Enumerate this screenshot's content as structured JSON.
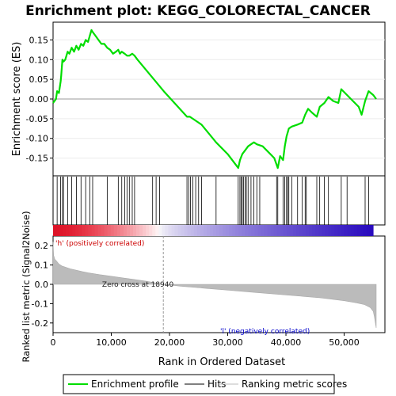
{
  "chart_data": {
    "type": "line",
    "title": "Enrichment plot: KEGG_COLORECTAL_CANCER",
    "xlabel": "Rank in Ordered Dataset",
    "xlim": [
      0,
      57000
    ],
    "x_ticks": [
      0,
      10000,
      20000,
      30000,
      40000,
      50000
    ],
    "x_tick_labels": [
      "0",
      "10,000",
      "20,000",
      "30,000",
      "40,000",
      "50,000"
    ],
    "top_panel": {
      "ylabel": "Enrichment score (ES)",
      "ylim": [
        -0.195,
        0.195
      ],
      "y_ticks": [
        -0.15,
        -0.1,
        -0.05,
        0.0,
        0.05,
        0.1,
        0.15
      ],
      "y_tick_labels": [
        "-0.15",
        "-0.10",
        "-0.05",
        "0.00",
        "0.05",
        "0.10",
        "0.15"
      ],
      "series": [
        {
          "name": "Enrichment profile",
          "color": "#00dd00",
          "x": [
            0,
            500,
            700,
            1000,
            1300,
            1400,
            1600,
            1800,
            2100,
            2500,
            2800,
            3200,
            3600,
            4000,
            4400,
            4800,
            5200,
            5600,
            6000,
            6300,
            6600,
            6800,
            7300,
            7800,
            8300,
            8800,
            9300,
            9800,
            10300,
            10800,
            11200,
            11500,
            11800,
            12300,
            12700,
            13100,
            13600,
            14000,
            14500,
            19000,
            23000,
            23500,
            24000,
            24500,
            25500,
            28000,
            30000,
            31800,
            32100,
            32500,
            33000,
            33500,
            34000,
            34500,
            35000,
            36000,
            37000,
            38000,
            38600,
            39000,
            39500,
            39800,
            40100,
            40500,
            41000,
            42000,
            42800,
            43300,
            43800,
            44500,
            45300,
            45800,
            46600,
            47300,
            48100,
            49000,
            49500,
            50500,
            51500,
            52500,
            53000,
            53600,
            54200,
            55000,
            55500
          ],
          "y": [
            -0.01,
            0.0,
            0.02,
            0.015,
            0.045,
            0.06,
            0.1,
            0.095,
            0.1,
            0.12,
            0.115,
            0.13,
            0.12,
            0.135,
            0.125,
            0.14,
            0.135,
            0.15,
            0.145,
            0.16,
            0.175,
            0.17,
            0.16,
            0.15,
            0.14,
            0.14,
            0.13,
            0.125,
            0.115,
            0.12,
            0.125,
            0.115,
            0.12,
            0.115,
            0.11,
            0.11,
            0.115,
            0.11,
            0.1,
            0.02,
            -0.045,
            -0.045,
            -0.05,
            -0.055,
            -0.065,
            -0.11,
            -0.14,
            -0.175,
            -0.155,
            -0.14,
            -0.13,
            -0.12,
            -0.115,
            -0.11,
            -0.115,
            -0.12,
            -0.135,
            -0.15,
            -0.175,
            -0.145,
            -0.155,
            -0.12,
            -0.095,
            -0.075,
            -0.07,
            -0.065,
            -0.06,
            -0.04,
            -0.025,
            -0.035,
            -0.045,
            -0.02,
            -0.01,
            0.005,
            -0.005,
            -0.01,
            0.025,
            0.01,
            -0.005,
            -0.02,
            -0.04,
            -0.005,
            0.02,
            0.01,
            0.0
          ]
        }
      ]
    },
    "hits_panel": {
      "name": "Hits",
      "hit_positions": [
        700,
        1300,
        1600,
        1800,
        2500,
        3200,
        4000,
        4800,
        5600,
        6300,
        6800,
        9300,
        11200,
        11800,
        12300,
        12700,
        13100,
        13600,
        14000,
        17100,
        17700,
        18300,
        23000,
        23300,
        23600,
        24000,
        24500,
        25000,
        25500,
        28000,
        31800,
        32100,
        32300,
        32500,
        32700,
        33000,
        33200,
        33500,
        34000,
        34500,
        35000,
        35500,
        38400,
        38600,
        39500,
        39800,
        40100,
        40300,
        40500,
        41000,
        42000,
        42800,
        43300,
        43500,
        45300,
        45800,
        46600,
        47300,
        49500,
        50500,
        53600,
        54200
      ]
    },
    "ranking_panel": {
      "name": "Ranking metric scores",
      "ylabel": "Ranked list metric (Signal2Noise)",
      "ylim": [
        -0.25,
        0.25
      ],
      "y_ticks": [
        -0.2,
        -0.1,
        0.0,
        0.1,
        0.2
      ],
      "y_tick_labels": [
        "-0.2",
        "-0.1",
        "0.0",
        "0.1",
        "0.2"
      ],
      "x": [
        0,
        100,
        300,
        600,
        1000,
        1500,
        2000,
        3000,
        4000,
        5000,
        6000,
        8000,
        10000,
        12000,
        14000,
        16000,
        18940,
        22000,
        26000,
        30000,
        34000,
        38000,
        42000,
        46000,
        50000,
        52000,
        53500,
        54500,
        55000,
        55200,
        55500
      ],
      "values": [
        0.22,
        0.15,
        0.13,
        0.12,
        0.105,
        0.095,
        0.09,
        0.08,
        0.073,
        0.066,
        0.06,
        0.05,
        0.042,
        0.033,
        0.025,
        0.016,
        0.0,
        -0.01,
        -0.02,
        -0.03,
        -0.04,
        -0.05,
        -0.06,
        -0.07,
        -0.085,
        -0.095,
        -0.105,
        -0.12,
        -0.14,
        -0.17,
        -0.225
      ],
      "zero_cross": 18940,
      "zero_cross_label": "Zero cross at 18940",
      "pos_label": "'h' (positively correlated)",
      "neg_label": "'l' (negatively correlated)"
    },
    "legend": {
      "placement": "bottom",
      "entries": [
        "Enrichment profile",
        "Hits",
        "Ranking metric scores"
      ]
    },
    "colors": {
      "profile": "#00dd00",
      "hits": "#000000",
      "ranking": "#bbbbbb",
      "pos_label": "#cc0000",
      "neg_label": "#0000cc"
    }
  }
}
